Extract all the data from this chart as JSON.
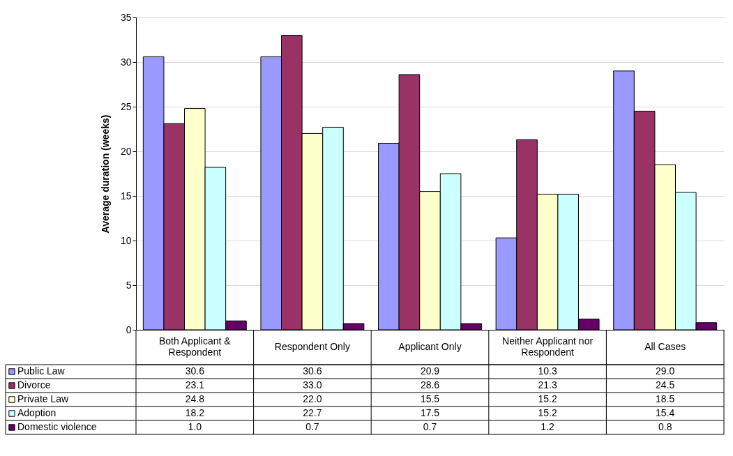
{
  "chart_data": {
    "type": "bar",
    "ylabel": "Average duration (weeks)",
    "categories": [
      "Both Applicant & Respondent",
      "Respondent Only",
      "Applicant Only",
      "Neither Applicant nor Respondent",
      "All Cases"
    ],
    "series": [
      {
        "name": "Public Law",
        "color": "#9999ff",
        "values": [
          30.6,
          30.6,
          20.9,
          10.3,
          29.0
        ],
        "value_labels": [
          "30.6",
          "30.6",
          "20.9",
          "10.3",
          "29.0"
        ]
      },
      {
        "name": "Divorce",
        "color": "#993366",
        "values": [
          23.1,
          33.0,
          28.6,
          21.3,
          24.5
        ],
        "value_labels": [
          "23.1",
          "33.0",
          "28.6",
          "21.3",
          "24.5"
        ]
      },
      {
        "name": "Private Law",
        "color": "#ffffcc",
        "values": [
          24.8,
          22.0,
          15.5,
          15.2,
          18.5
        ],
        "value_labels": [
          "24.8",
          "22.0",
          "15.5",
          "15.2",
          "18.5"
        ]
      },
      {
        "name": "Adoption",
        "color": "#ccffff",
        "values": [
          18.2,
          22.7,
          17.5,
          15.2,
          15.4
        ],
        "value_labels": [
          "18.2",
          "22.7",
          "17.5",
          "15.2",
          "15.4"
        ]
      },
      {
        "name": "Domestic violence",
        "color": "#660066",
        "values": [
          1.0,
          0.7,
          0.7,
          1.2,
          0.8
        ],
        "value_labels": [
          "1.0",
          "0.7",
          "0.7",
          "1.2",
          "0.8"
        ]
      }
    ],
    "ylim": [
      0,
      35
    ],
    "yticks": [
      0,
      5,
      10,
      15,
      20,
      25,
      30,
      35
    ],
    "grid": "y",
    "legend": "bottom"
  }
}
